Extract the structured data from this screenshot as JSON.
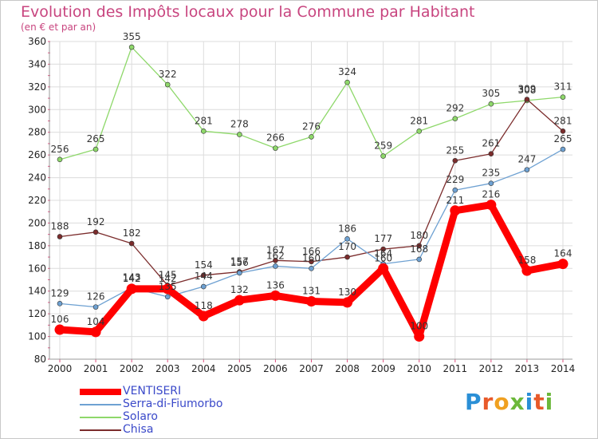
{
  "header": {
    "title": "Evolution des Impôts locaux pour la Commune par Habitant",
    "subtitle": "(en € et par an)"
  },
  "logo": {
    "text": "Proxiti"
  },
  "chart_data": {
    "type": "line",
    "title": "Evolution des Impôts locaux pour la Commune par Habitant",
    "subtitle": "(en € et par an)",
    "xlabel": "",
    "ylabel": "",
    "ylim": [
      80,
      360
    ],
    "yticks": [
      80,
      100,
      120,
      140,
      160,
      180,
      200,
      220,
      240,
      260,
      280,
      300,
      320,
      340,
      360
    ],
    "grid": true,
    "legend_position": "bottom-left",
    "categories": [
      "2000",
      "2001",
      "2002",
      "2003",
      "2004",
      "2005",
      "2006",
      "2007",
      "2008",
      "2009",
      "2010",
      "2011",
      "2012",
      "2013",
      "2014"
    ],
    "series": [
      {
        "name": "VENTISERI",
        "color": "#ff0000",
        "values": [
          106,
          104,
          142,
          142,
          118,
          132,
          136,
          131,
          130,
          160,
          100,
          211,
          216,
          158,
          164
        ],
        "labels": [
          "106",
          "104",
          "142",
          "142",
          "118",
          "132",
          "136",
          "131",
          "130",
          "160",
          "100",
          "211",
          "216",
          "158",
          "164"
        ]
      },
      {
        "name": "Serra-di-Fiumorbo",
        "color": "#6ea1d2",
        "values": [
          129,
          126,
          143,
          135,
          144,
          156,
          162,
          160,
          186,
          164,
          168,
          229,
          235,
          247,
          265
        ],
        "labels": [
          "129",
          "126",
          "143",
          "135",
          "144",
          "156",
          "162",
          "160",
          "186",
          "164",
          "168",
          "229",
          "235",
          "247",
          "265"
        ]
      },
      {
        "name": "Solaro",
        "color": "#8ed86a",
        "values": [
          256,
          265,
          355,
          322,
          281,
          278,
          266,
          276,
          324,
          259,
          281,
          292,
          305,
          308,
          311
        ],
        "labels": [
          "256",
          "265",
          "355",
          "322",
          "281",
          "278",
          "266",
          "276",
          "324",
          "259",
          "281",
          "292",
          "305",
          "308",
          "311"
        ]
      },
      {
        "name": "Chisa",
        "color": "#7b2c2c",
        "values": [
          188,
          192,
          182,
          145,
          154,
          157,
          167,
          166,
          170,
          177,
          180,
          255,
          261,
          309,
          281
        ],
        "labels": [
          "188",
          "192",
          "182",
          "145",
          "154",
          "157",
          "167",
          "166",
          "170",
          "177",
          "180",
          "255",
          "261",
          "309",
          "281"
        ]
      }
    ]
  }
}
